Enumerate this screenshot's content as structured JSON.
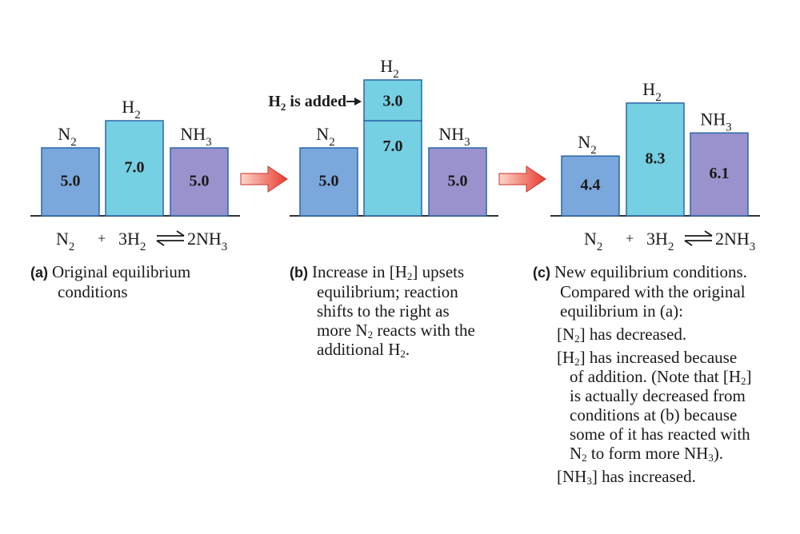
{
  "colors": {
    "n2": "#7aa7dc",
    "h2": "#74d0e2",
    "nh3": "#9a92cc",
    "edge": "#2b66a8",
    "arrow_light": "#ffd8cc",
    "arrow_dark": "#e63a2e"
  },
  "panels": [
    {
      "id": "a",
      "bars": [
        {
          "species": "N",
          "sub": "2",
          "value": 5.0,
          "value_label": "5.0",
          "color_key": "n2"
        },
        {
          "species": "H",
          "sub": "2",
          "value": 7.0,
          "value_label": "7.0",
          "color_key": "h2"
        },
        {
          "species": "NH",
          "sub": "3",
          "value": 5.0,
          "value_label": "5.0",
          "color_key": "nh3"
        }
      ],
      "equation": {
        "left": "N",
        "left_sub": "2",
        "plus": "+",
        "mid": "3H",
        "mid_sub": "2",
        "right": "2NH",
        "right_sub": "3"
      }
    },
    {
      "id": "b",
      "bars": [
        {
          "species": "N",
          "sub": "2",
          "value": 5.0,
          "value_label": "5.0",
          "color_key": "n2"
        },
        {
          "species": "H",
          "sub": "2",
          "value": 7.0,
          "value_label": "7.0",
          "color_key": "h2",
          "added": 3.0,
          "added_label": "3.0"
        },
        {
          "species": "NH",
          "sub": "3",
          "value": 5.0,
          "value_label": "5.0",
          "color_key": "nh3"
        }
      ],
      "added_note": {
        "pre": "H",
        "sub": "2",
        "post": " is added"
      }
    },
    {
      "id": "c",
      "bars": [
        {
          "species": "N",
          "sub": "2",
          "value": 4.4,
          "value_label": "4.4",
          "color_key": "n2"
        },
        {
          "species": "H",
          "sub": "2",
          "value": 8.3,
          "value_label": "8.3",
          "color_key": "h2"
        },
        {
          "species": "NH",
          "sub": "3",
          "value": 6.1,
          "value_label": "6.1",
          "color_key": "nh3"
        }
      ],
      "equation": {
        "left": "N",
        "left_sub": "2",
        "plus": "+",
        "mid": "3H",
        "mid_sub": "2",
        "right": "2NH",
        "right_sub": "3"
      }
    }
  ],
  "captions": {
    "a": {
      "lead": "(a)",
      "lines": [
        [
          {
            "t": "Original equilibrium"
          }
        ],
        [
          {
            "t": "conditions"
          }
        ]
      ]
    },
    "b": {
      "lead": "(b)",
      "lines": [
        [
          {
            "t": "Increase in [H"
          },
          {
            "s": "2"
          },
          {
            "t": "] upsets"
          }
        ],
        [
          {
            "t": "equilibrium; reaction"
          }
        ],
        [
          {
            "t": "shifts to the right as"
          }
        ],
        [
          {
            "t": "more N"
          },
          {
            "s": "2"
          },
          {
            "t": " reacts with the"
          }
        ],
        [
          {
            "t": "additional H"
          },
          {
            "s": "2"
          },
          {
            "t": "."
          }
        ]
      ]
    },
    "c": {
      "lead": "(c)",
      "lines": [
        [
          {
            "t": "New equilibrium conditions."
          }
        ],
        [
          {
            "t": "Compared with the original"
          }
        ],
        [
          {
            "t": "equilibrium in (a):"
          }
        ]
      ],
      "notes": [
        [
          [
            {
              "t": "[N"
            },
            {
              "s": "2"
            },
            {
              "t": "] has decreased."
            }
          ]
        ],
        [
          [
            {
              "t": "[H"
            },
            {
              "s": "2"
            },
            {
              "t": "] has increased because"
            }
          ],
          [
            {
              "t": "of addition. (Note that [H"
            },
            {
              "s": "2"
            },
            {
              "t": "]"
            }
          ],
          [
            {
              "t": "is actually decreased from"
            }
          ],
          [
            {
              "t": "conditions at (b) because"
            }
          ],
          [
            {
              "t": "some of it has reacted with"
            }
          ],
          [
            {
              "t": "N"
            },
            {
              "s": "2"
            },
            {
              "t": " to form more NH"
            },
            {
              "s": "3"
            },
            {
              "t": ")."
            }
          ]
        ],
        [
          [
            {
              "t": "[NH"
            },
            {
              "s": "3"
            },
            {
              "t": "] has increased."
            }
          ]
        ]
      ]
    }
  }
}
